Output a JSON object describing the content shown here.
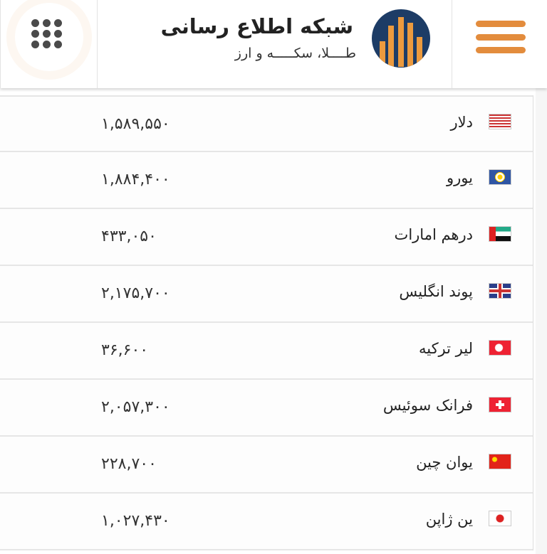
{
  "header": {
    "title": "شبکه اطلاع رسانی",
    "subtitle": "طــــلا، سکـــــه و ارز",
    "menu_icon": "hamburger-icon",
    "apps_icon": "grid-dots-icon",
    "brand_colors": {
      "orange": "#e38c3d",
      "navy": "#1d3c66"
    }
  },
  "rates": [
    {
      "name": "دلار",
      "price": "۱,۵۸۹,۵۵۰",
      "flag": "us"
    },
    {
      "name": "یورو",
      "price": "۱,۸۸۴,۴۰۰",
      "flag": "eu"
    },
    {
      "name": "درهم امارات",
      "price": "۴۳۳,۰۵۰",
      "flag": "ae"
    },
    {
      "name": "پوند انگلیس",
      "price": "۲,۱۷۵,۷۰۰",
      "flag": "gb"
    },
    {
      "name": "لیر ترکیه",
      "price": "۳۶,۶۰۰",
      "flag": "tr"
    },
    {
      "name": "فرانک سوئیس",
      "price": "۲,۰۵۷,۳۰۰",
      "flag": "ch"
    },
    {
      "name": "یوان چین",
      "price": "۲۲۸,۷۰۰",
      "flag": "cn"
    },
    {
      "name": "ین ژاپن",
      "price": "۱,۰۲۷,۴۳۰",
      "flag": "jp"
    }
  ]
}
